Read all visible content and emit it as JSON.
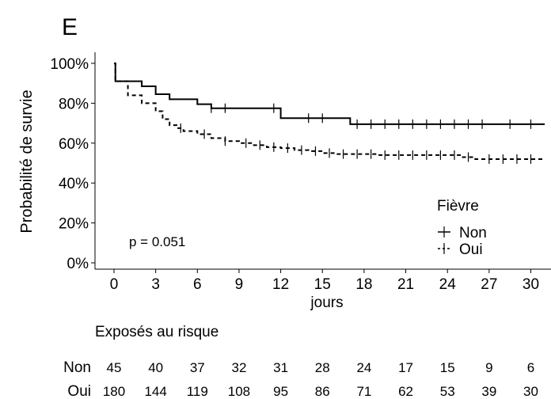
{
  "panel_label": "E",
  "chart_data": {
    "type": "line",
    "subtype": "kaplan-meier",
    "title": "",
    "xlabel": "jours",
    "ylabel": "Probabilité de survie",
    "xlim": [
      -1,
      31
    ],
    "ylim": [
      0,
      1
    ],
    "xticks": [
      0,
      3,
      6,
      9,
      12,
      15,
      18,
      21,
      24,
      27,
      30
    ],
    "yticks": [
      0,
      0.2,
      0.4,
      0.6,
      0.8,
      1.0
    ],
    "ytick_labels": [
      "0%",
      "20%",
      "40%",
      "60%",
      "80%",
      "100%"
    ],
    "grid": false,
    "legend": {
      "title": "Fièvre",
      "placement": "right"
    },
    "pvalue_label": "p = 0.051",
    "series": [
      {
        "name": "Non",
        "line_style": "solid",
        "steps": [
          [
            0,
            1.0
          ],
          [
            0.1,
            0.91
          ],
          [
            2,
            0.885
          ],
          [
            3,
            0.845
          ],
          [
            4,
            0.82
          ],
          [
            6,
            0.795
          ],
          [
            7,
            0.775
          ],
          [
            12,
            0.725
          ],
          [
            17,
            0.695
          ],
          [
            31,
            0.695
          ]
        ],
        "censor_x": [
          7,
          8,
          11.5,
          14,
          15,
          17.5,
          18.5,
          19.5,
          20.5,
          21.5,
          22.5,
          23.5,
          24.5,
          25.5,
          26.5,
          28.5,
          30
        ]
      },
      {
        "name": "Oui",
        "line_style": "dashed",
        "steps": [
          [
            0,
            1.0
          ],
          [
            0.1,
            0.91
          ],
          [
            1,
            0.84
          ],
          [
            2,
            0.8
          ],
          [
            3,
            0.76
          ],
          [
            3.5,
            0.72
          ],
          [
            4,
            0.69
          ],
          [
            4.5,
            0.675
          ],
          [
            5,
            0.66
          ],
          [
            6,
            0.645
          ],
          [
            7,
            0.625
          ],
          [
            8,
            0.61
          ],
          [
            9,
            0.6
          ],
          [
            10,
            0.59
          ],
          [
            11,
            0.58
          ],
          [
            12,
            0.575
          ],
          [
            13,
            0.565
          ],
          [
            14,
            0.56
          ],
          [
            15,
            0.55
          ],
          [
            16,
            0.545
          ],
          [
            19,
            0.54
          ],
          [
            25,
            0.53
          ],
          [
            26,
            0.52
          ],
          [
            31,
            0.52
          ]
        ],
        "censor_x": [
          4.8,
          6.5,
          8,
          9.5,
          10.5,
          11.5,
          12.5,
          13.5,
          14.5,
          15.5,
          16.5,
          17.5,
          18.5,
          19.5,
          20.5,
          21.5,
          22.5,
          23.5,
          24.5,
          25.5,
          27,
          28,
          29,
          30
        ]
      }
    ]
  },
  "risk_table": {
    "title": "Exposés au risque",
    "times": [
      0,
      3,
      6,
      9,
      12,
      15,
      18,
      21,
      24,
      27,
      30
    ],
    "rows": [
      {
        "label": "Non",
        "values": [
          "45",
          "40",
          "37",
          "32",
          "31",
          "28",
          "24",
          "17",
          "15",
          "9",
          "6"
        ]
      },
      {
        "label": "Oui",
        "values": [
          "180",
          "144",
          "119",
          "108",
          "95",
          "86",
          "71",
          "62",
          "53",
          "39",
          "30"
        ]
      }
    ]
  }
}
